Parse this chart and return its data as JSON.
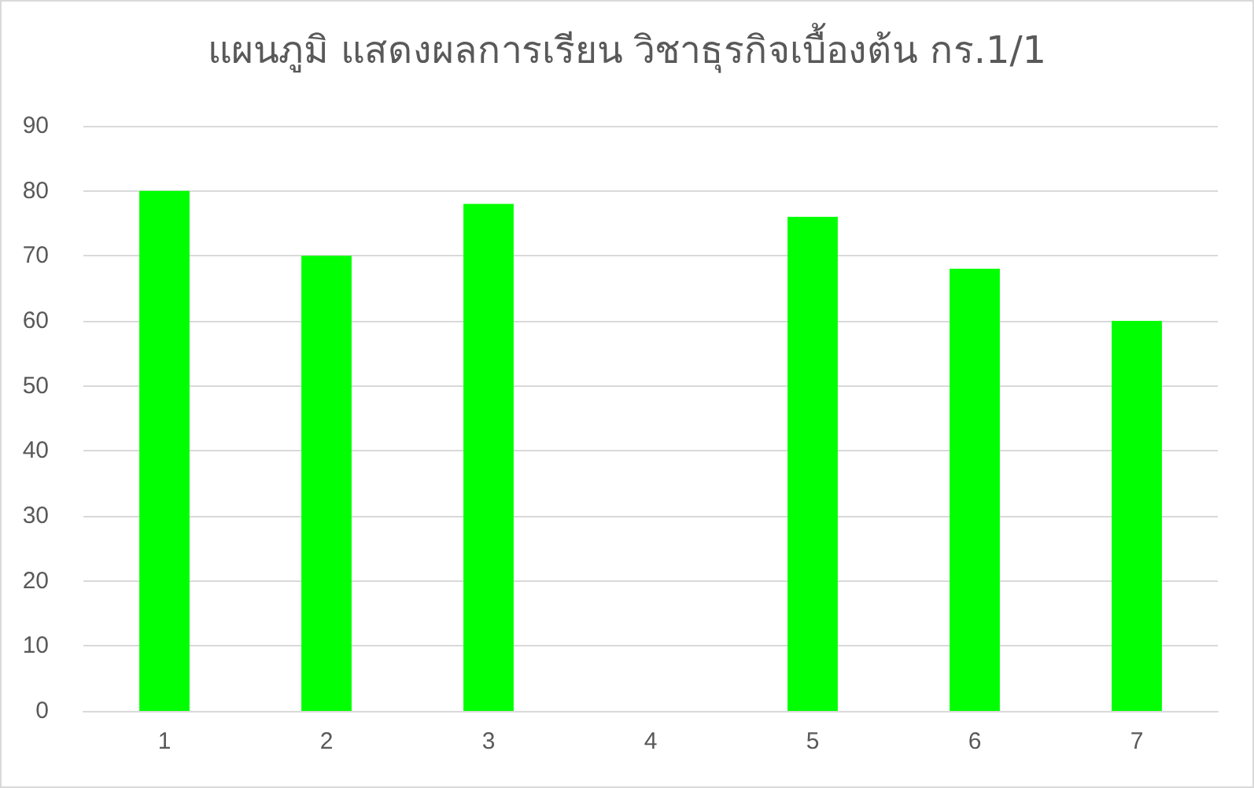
{
  "chart_data": {
    "type": "bar",
    "title": "แผนภูมิ แสดงผลการเรียน วิชาธุรกิจเบื้องต้น กร.1/1",
    "categories": [
      "1",
      "2",
      "3",
      "4",
      "5",
      "6",
      "7"
    ],
    "series": [
      {
        "color": "#00ff00",
        "values": [
          80,
          70,
          78,
          0,
          76,
          68,
          60
        ]
      }
    ],
    "ylim": [
      0,
      90
    ],
    "yticks": [
      0,
      10,
      20,
      30,
      40,
      50,
      60,
      70,
      80,
      90
    ],
    "grid": "y"
  }
}
